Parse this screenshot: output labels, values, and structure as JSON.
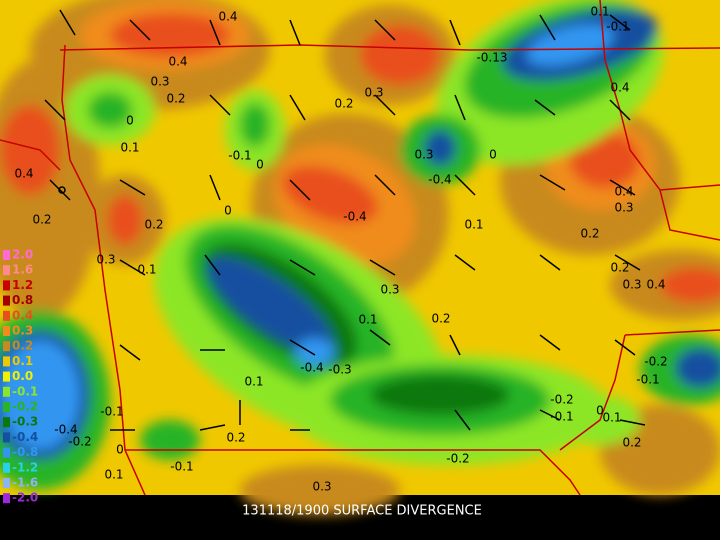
{
  "title": "131118/1900 SURFACE DIVERGENCE",
  "legend": [
    {
      "label": "2.0",
      "color": "#ff6ad5"
    },
    {
      "label": "1.6",
      "color": "#ff8a8a"
    },
    {
      "label": "1.2",
      "color": "#c80000"
    },
    {
      "label": "0.8",
      "color": "#a00000"
    },
    {
      "label": "0.4",
      "color": "#e8501a"
    },
    {
      "label": "0.3",
      "color": "#f08c1e"
    },
    {
      "label": "0.2",
      "color": "#c88a1e"
    },
    {
      "label": "0.1",
      "color": "#f0c800"
    },
    {
      "label": "0.0",
      "color": "#f0f000"
    },
    {
      "label": "-0.1",
      "color": "#8ce628"
    },
    {
      "label": "-0.2",
      "color": "#28b428"
    },
    {
      "label": "-0.3",
      "color": "#0a780a"
    },
    {
      "label": "-0.4",
      "color": "#1450a0"
    },
    {
      "label": "-0.8",
      "color": "#3296f0"
    },
    {
      "label": "-1.2",
      "color": "#28d2e6"
    },
    {
      "label": "-1.6",
      "color": "#8cb4f0"
    },
    {
      "label": "-2.0",
      "color": "#a028dc"
    }
  ],
  "contour_labels": [
    "0.4",
    "0.4",
    "0.3",
    "0.2",
    "0",
    "0.1",
    "-0.1",
    "0",
    "0.4",
    "0.2",
    "0.2",
    "0.3",
    "0.1",
    "0",
    "-0.4",
    "0.2",
    "0.3",
    "0.3",
    "-0.4",
    "0",
    "-0.13",
    "0.1",
    "-0.1",
    "0.4",
    "0.4",
    "0.3",
    "0.2",
    "0.1",
    "0.2",
    "0.3",
    "0.4",
    "0.3",
    "0.1",
    "0.2",
    "-0.4",
    "-0.3",
    "0.1",
    "-0.1",
    "-0.4",
    "-0.2",
    "0.2",
    "0",
    "-0.1",
    "0.1",
    "-0.2",
    "-0.2",
    "-0.1",
    "0",
    "0.1",
    "-0.2",
    "-0.1",
    "0.2",
    "0.3"
  ]
}
